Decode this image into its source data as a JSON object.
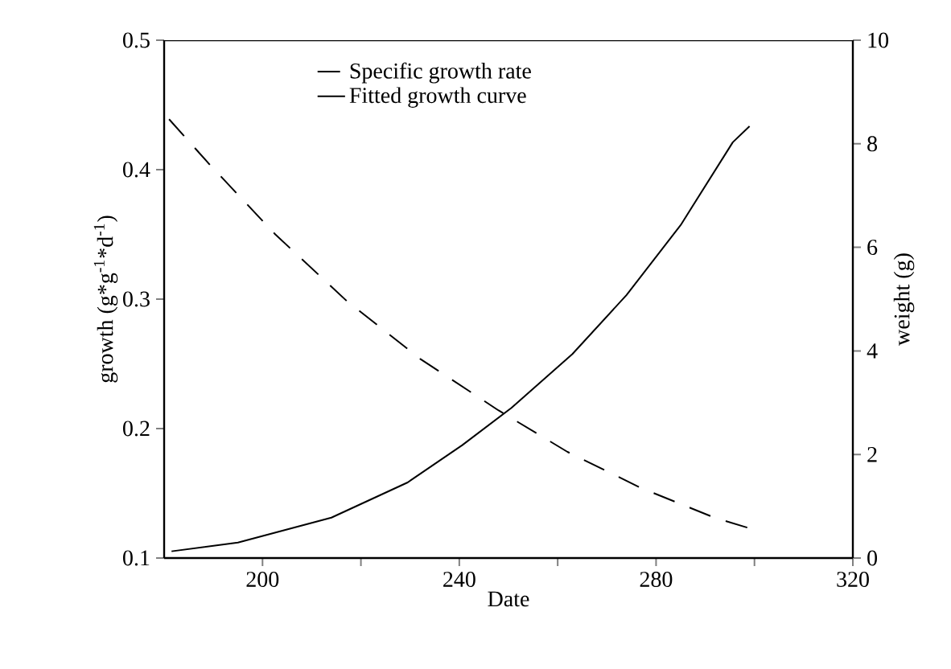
{
  "chart_data": {
    "type": "line",
    "xlabel": "Date",
    "ylabel": "growth (g*g$^{-1}$*d$^{-1}$)",
    "y2label": "weight (g)",
    "xlim": [
      180,
      320
    ],
    "xticks": [
      200,
      {
        "value": 220,
        "label": null
      },
      240,
      {
        "value": 260,
        "label": null
      },
      280,
      {
        "value": 300,
        "label": null
      },
      320
    ],
    "ylim": [
      0.1,
      0.5
    ],
    "yticks": [
      0.1,
      0.2,
      0.3,
      0.4,
      0.5
    ],
    "y2lim": [
      0,
      10
    ],
    "y2ticks": [
      0,
      2,
      4,
      6,
      8,
      10
    ],
    "legend": "top",
    "grid": false,
    "marker": "none",
    "series": [
      {
        "name": "Specific growth rate",
        "color": "#000000",
        "line_style": "dashed",
        "x": [
          181,
          189,
          202.6,
          217,
          232,
          248,
          262,
          277,
          292,
          299
        ],
        "values": [
          0.439,
          0.405,
          0.35,
          0.299,
          0.254,
          0.214,
          0.182,
          0.154,
          0.131,
          0.123
        ]
      },
      {
        "name": "Fitted growth curve",
        "color": "#000000",
        "line_style": "solid",
        "axis": "y2",
        "x": [
          181.5,
          195,
          214,
          229.5,
          240.6,
          250.6,
          263,
          274,
          285,
          295.6,
          299
        ],
        "values": [
          0.13,
          0.3,
          0.78,
          1.46,
          2.18,
          2.9,
          3.94,
          5.08,
          6.43,
          8.03,
          8.34
        ]
      }
    ]
  }
}
